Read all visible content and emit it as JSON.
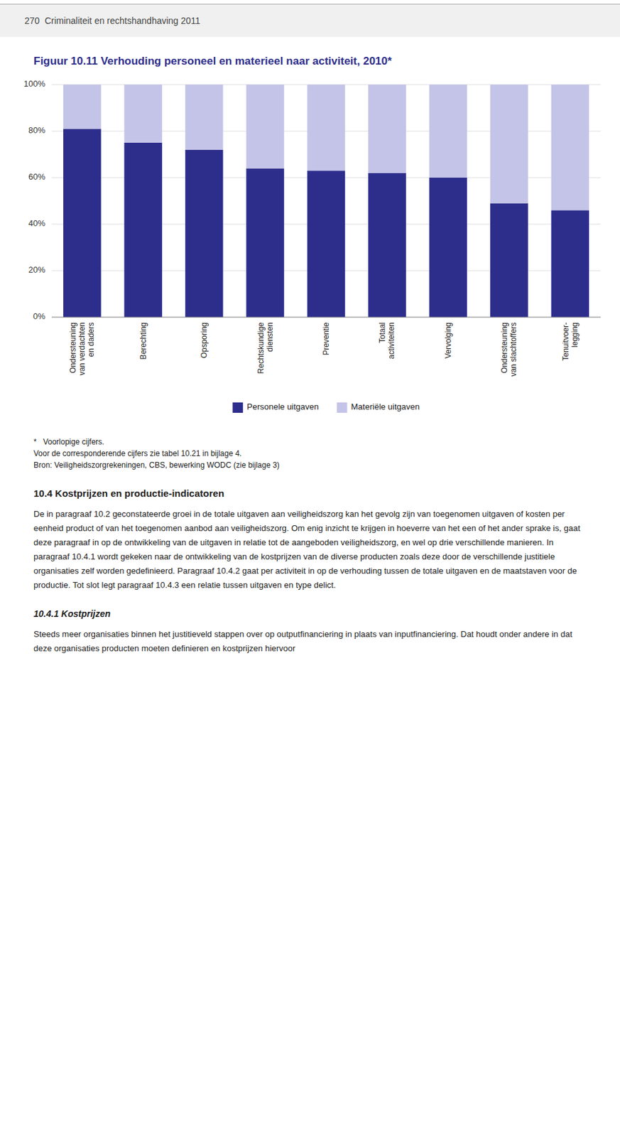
{
  "chart_data": {
    "type": "bar",
    "stacked": true,
    "title": "Figuur 10.11  Verhouding personeel en materieel naar activiteit, 2010*",
    "categories": [
      "Ondersteuning\nvan verdachten\nen daders",
      "Berechting",
      "Opsporing",
      "Rechtskundige\ndiensten",
      "Preventie",
      "Totaal\nactiviteiten",
      "Vervolging",
      "Ondersteuning\nvan slachtoffers",
      "Tenuitvoer-\nlegging"
    ],
    "series": [
      {
        "name": "Personele uitgaven",
        "color": "#2d2d8c",
        "values": [
          81,
          75,
          72,
          64,
          63,
          62,
          60,
          49,
          46
        ]
      },
      {
        "name": "Materiële uitgaven",
        "color": "#c4c4e8",
        "values": [
          19,
          25,
          28,
          36,
          37,
          38,
          40,
          51,
          54
        ]
      }
    ],
    "ylim": [
      0,
      100
    ],
    "yticks": [
      {
        "value": 0,
        "label": "0%"
      },
      {
        "value": 20,
        "label": "20%"
      },
      {
        "value": 40,
        "label": "40%"
      },
      {
        "value": 60,
        "label": "60%"
      },
      {
        "value": 80,
        "label": "80%"
      },
      {
        "value": 100,
        "label": "100%"
      }
    ],
    "grid": true,
    "legend": "bottom"
  },
  "header": "270  Criminaliteit en rechtshandhaving 2011",
  "footnotes": [
    "*   Voorlopige cijfers.",
    "Voor de corresponderende cijfers zie tabel 10.21 in bijlage 4."
  ],
  "source": "Bron: Veiligheidszorgrekeningen, CBS, bewerking WODC (zie bijlage 3)",
  "sections": [
    {
      "heading": "10.4 Kostprijzen en productie-indicatoren",
      "text": "De in paragraaf 10.2 geconstateerde groei in de totale uitgaven aan veiligheidszorg kan het gevolg zijn van toegenomen uitgaven of kosten per eenheid product of van het toegenomen aanbod aan veiligheidszorg. Om enig inzicht te krijgen in hoeverre van het een of het ander sprake is, gaat deze paragraaf in op de ontwikkeling van de uitgaven in relatie tot de aangeboden veiligheidszorg, en wel op drie verschillende manieren. In paragraaf 10.4.1 wordt gekeken naar de ontwikkeling van de kostprijzen van de diverse producten zoals deze door de verschillende justitiele organisaties zelf worden gedefinieerd. Paragraaf 10.4.2 gaat per activiteit in op de verhouding tussen de totale uitgaven en de maatstaven voor de productie. Tot slot legt paragraaf 10.4.3 een relatie tussen uitgaven en type delict."
    },
    {
      "heading": "10.4.1 Kostprijzen",
      "text": "Steeds meer organisaties binnen het justitieveld stappen over op outputfinanciering in plaats van inputfinanciering. Dat houdt onder andere in dat deze organisaties producten moeten definieren en kostprijzen hiervoor"
    }
  ]
}
